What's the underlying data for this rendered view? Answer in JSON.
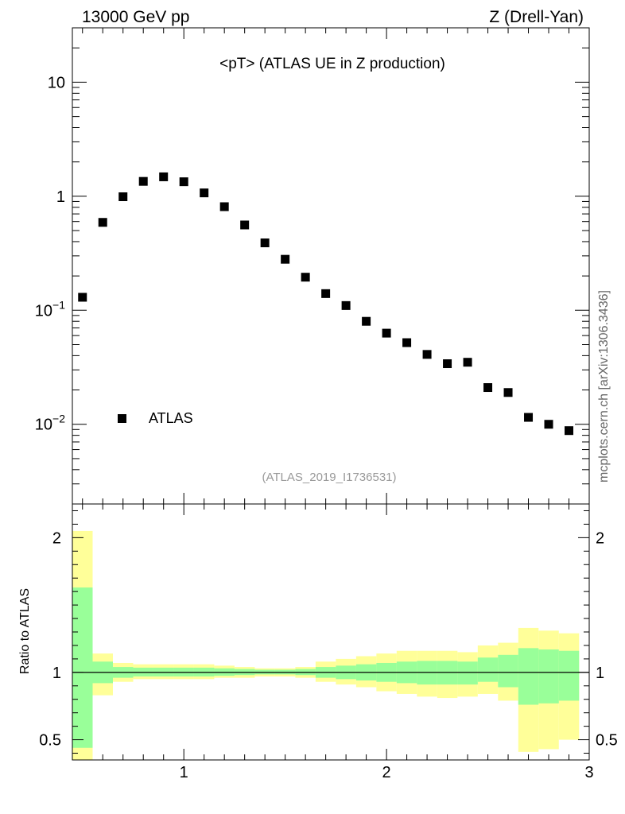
{
  "header": {
    "left": "13000 GeV pp",
    "right": "Z (Drell-Yan)"
  },
  "side_label": "mcplots.cern.ch [arXiv:1306.3436]",
  "chart_data": [
    {
      "type": "scatter",
      "title": "<pT> (ATLAS UE in Z production)",
      "analysis_tag": "(ATLAS_2019_I1736531)",
      "xlim": [
        0.45,
        3.0
      ],
      "ylim": [
        0.002,
        30
      ],
      "yscale": "log",
      "y_tick_labels": [
        {
          "value": 10,
          "base": "10",
          "exp": ""
        },
        {
          "value": 1,
          "base": "1",
          "exp": ""
        },
        {
          "value": 0.1,
          "base": "10",
          "exp": "−1"
        },
        {
          "value": 0.01,
          "base": "10",
          "exp": "−2"
        }
      ],
      "legend": {
        "entries": [
          "ATLAS"
        ],
        "placement": "bottom-left"
      },
      "series": [
        {
          "name": "ATLAS",
          "marker": "square",
          "color": "#000000",
          "x": [
            0.5,
            0.6,
            0.7,
            0.8,
            0.9,
            1.0,
            1.1,
            1.2,
            1.3,
            1.4,
            1.5,
            1.6,
            1.7,
            1.8,
            1.9,
            2.0,
            2.1,
            2.2,
            2.3,
            2.4,
            2.5,
            2.6,
            2.7,
            2.8,
            2.9
          ],
          "y": [
            0.13,
            0.59,
            0.99,
            1.35,
            1.48,
            1.34,
            1.07,
            0.81,
            0.56,
            0.39,
            0.28,
            0.195,
            0.14,
            0.11,
            0.08,
            0.063,
            0.052,
            0.041,
            0.034,
            0.035,
            0.021,
            0.019,
            0.0115,
            0.01,
            0.0088
          ]
        }
      ]
    },
    {
      "type": "area",
      "ylabel": "Ratio to ATLAS",
      "xlim": [
        0.45,
        3.0
      ],
      "ylim": [
        0.35,
        2.25
      ],
      "x_ticks": [
        1,
        2,
        3
      ],
      "x_tick_labels": [
        "1",
        "2",
        "3"
      ],
      "y_ticks": [
        0.5,
        1,
        2
      ],
      "y_tick_labels": [
        "0.5",
        "1",
        "2"
      ],
      "reference_line": 1.0,
      "bin_edges": [
        0.45,
        0.55,
        0.65,
        0.75,
        0.85,
        0.95,
        1.05,
        1.15,
        1.25,
        1.35,
        1.45,
        1.55,
        1.65,
        1.75,
        1.85,
        1.95,
        2.05,
        2.15,
        2.25,
        2.35,
        2.45,
        2.55,
        2.65,
        2.75,
        2.85,
        2.95
      ],
      "bands": [
        {
          "color": "#ffff99",
          "lo": [
            0.35,
            0.83,
            0.93,
            0.95,
            0.95,
            0.95,
            0.95,
            0.96,
            0.96,
            0.97,
            0.97,
            0.96,
            0.93,
            0.91,
            0.89,
            0.86,
            0.84,
            0.82,
            0.81,
            0.82,
            0.84,
            0.79,
            0.41,
            0.43,
            0.5
          ],
          "hi": [
            2.05,
            1.14,
            1.07,
            1.06,
            1.06,
            1.06,
            1.06,
            1.05,
            1.04,
            1.03,
            1.03,
            1.04,
            1.08,
            1.1,
            1.12,
            1.14,
            1.16,
            1.16,
            1.16,
            1.15,
            1.2,
            1.22,
            1.33,
            1.31,
            1.29
          ]
        },
        {
          "color": "#99ff99",
          "lo": [
            0.44,
            0.92,
            0.96,
            0.97,
            0.97,
            0.97,
            0.97,
            0.975,
            0.98,
            0.985,
            0.985,
            0.98,
            0.96,
            0.95,
            0.94,
            0.93,
            0.92,
            0.91,
            0.91,
            0.91,
            0.93,
            0.89,
            0.76,
            0.77,
            0.79
          ],
          "hi": [
            1.63,
            1.08,
            1.04,
            1.035,
            1.035,
            1.035,
            1.035,
            1.03,
            1.025,
            1.02,
            1.02,
            1.025,
            1.04,
            1.05,
            1.06,
            1.07,
            1.08,
            1.085,
            1.085,
            1.08,
            1.11,
            1.13,
            1.18,
            1.17,
            1.16
          ]
        }
      ]
    }
  ]
}
